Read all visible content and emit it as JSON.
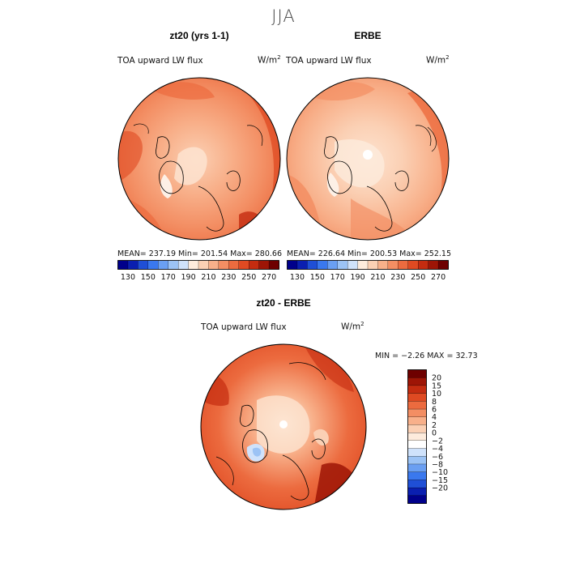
{
  "page": {
    "title": "JJA"
  },
  "colorbar": {
    "colors": [
      "#00008b",
      "#0a1fb0",
      "#1f4fd6",
      "#3a78ee",
      "#6a9ff2",
      "#9cc3f5",
      "#cfe2fb",
      "#fdebdc",
      "#fbd0b4",
      "#f8b08a",
      "#f38e63",
      "#ec6b3f",
      "#df4a22",
      "#c42c10",
      "#9e1506",
      "#6e0000"
    ],
    "tick_labels": [
      "130",
      "150",
      "170",
      "190",
      "210",
      "230",
      "250",
      "270"
    ]
  },
  "diff_colorbar": {
    "colors": [
      "#00008b",
      "#0a1fb0",
      "#1f4fd6",
      "#3a78ee",
      "#6a9ff2",
      "#9cc3f5",
      "#cfe2fb",
      "#ffffff",
      "#fdebdc",
      "#fbd0b4",
      "#f8b08a",
      "#f38e63",
      "#ec6b3f",
      "#df4a22",
      "#c42c10",
      "#9e1506",
      "#6e0000"
    ],
    "tick_labels": [
      "20",
      "15",
      "10",
      "8",
      "6",
      "4",
      "2",
      "0",
      "−2",
      "−4",
      "−6",
      "−8",
      "−10",
      "−15",
      "−20"
    ]
  },
  "panels": {
    "left": {
      "title": "zt20 (yrs 1-1)",
      "variable": "TOA upward LW flux",
      "units_base": "W/m",
      "units_exp": "2",
      "stats": "MEAN= 237.19   Min= 201.54   Max= 280.66"
    },
    "right": {
      "title": "ERBE",
      "variable": "TOA upward LW flux",
      "units_base": "W/m",
      "units_exp": "2",
      "stats": "MEAN= 226.64   Min= 200.53   Max= 252.15"
    },
    "bottom": {
      "title": "zt20 - ERBE",
      "variable": "TOA upward LW flux",
      "units_base": "W/m",
      "units_exp": "2",
      "stats": "MIN =   −2.26  MAX =   32.73"
    }
  },
  "chart_data": [
    {
      "type": "heatmap",
      "title": "zt20 (yrs 1-1)",
      "subtitle": "TOA upward LW flux (W/m2), JJA, north polar projection",
      "summary": {
        "mean": 237.19,
        "min": 201.54,
        "max": 280.66
      },
      "colorbar_levels": [
        130,
        140,
        150,
        160,
        170,
        180,
        190,
        200,
        210,
        220,
        230,
        240,
        250,
        260,
        270,
        280
      ],
      "colorbar_ticks": [
        130,
        150,
        170,
        190,
        210,
        230,
        250,
        270
      ]
    },
    {
      "type": "heatmap",
      "title": "ERBE",
      "subtitle": "TOA upward LW flux (W/m2), JJA, north polar projection",
      "summary": {
        "mean": 226.64,
        "min": 200.53,
        "max": 252.15
      },
      "colorbar_levels": [
        130,
        140,
        150,
        160,
        170,
        180,
        190,
        200,
        210,
        220,
        230,
        240,
        250,
        260,
        270,
        280
      ],
      "colorbar_ticks": [
        130,
        150,
        170,
        190,
        210,
        230,
        250,
        270
      ]
    },
    {
      "type": "heatmap",
      "title": "zt20 - ERBE",
      "subtitle": "TOA upward LW flux difference (W/m2), JJA",
      "summary": {
        "min": -2.26,
        "max": 32.73
      },
      "colorbar_ticks": [
        20,
        15,
        10,
        8,
        6,
        4,
        2,
        0,
        -2,
        -4,
        -6,
        -8,
        -10,
        -15,
        -20
      ]
    }
  ]
}
